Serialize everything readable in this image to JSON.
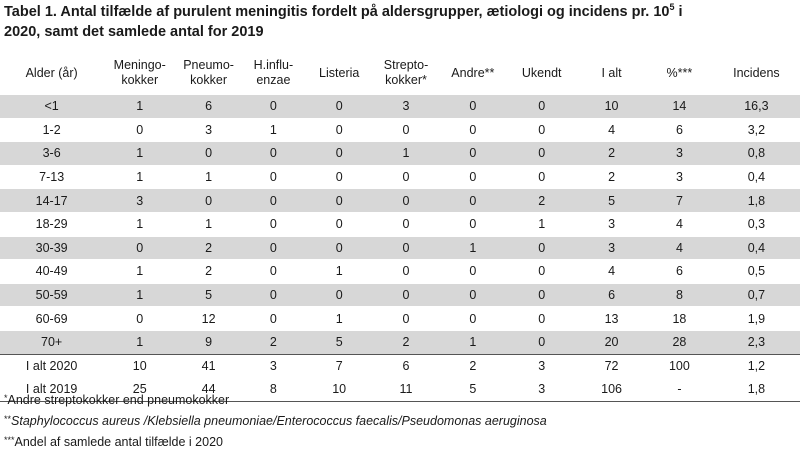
{
  "title": {
    "line1_before": "Tabel 1. Antal tilfælde af purulent meningitis fordelt på aldersgrupper, ætiologi og incidens pr. 10",
    "line1_sup": "5",
    "line1_after": " i",
    "line2": "2020, samt det samlede antal for 2019"
  },
  "columns": [
    {
      "line1": "Alder (år)",
      "line2": ""
    },
    {
      "line1": "Meningo-",
      "line2": "kokker"
    },
    {
      "line1": "Pneumo-",
      "line2": "kokker"
    },
    {
      "line1": "H.influ-",
      "line2": "enzae"
    },
    {
      "line1": "Listeria",
      "line2": ""
    },
    {
      "line1": "Strepto-",
      "line2": "kokker*"
    },
    {
      "line1": "Andre**",
      "line2": ""
    },
    {
      "line1": "Ukendt",
      "line2": ""
    },
    {
      "line1": "I alt",
      "line2": ""
    },
    {
      "line1": "%***",
      "line2": ""
    },
    {
      "line1": "Incidens",
      "line2": ""
    }
  ],
  "rows": [
    [
      "<1",
      "1",
      "6",
      "0",
      "0",
      "3",
      "0",
      "0",
      "10",
      "14",
      "16,3"
    ],
    [
      "1-2",
      "0",
      "3",
      "1",
      "0",
      "0",
      "0",
      "0",
      "4",
      "6",
      "3,2"
    ],
    [
      "3-6",
      "1",
      "0",
      "0",
      "0",
      "1",
      "0",
      "0",
      "2",
      "3",
      "0,8"
    ],
    [
      "7-13",
      "1",
      "1",
      "0",
      "0",
      "0",
      "0",
      "0",
      "2",
      "3",
      "0,4"
    ],
    [
      "14-17",
      "3",
      "0",
      "0",
      "0",
      "0",
      "0",
      "2",
      "5",
      "7",
      "1,8"
    ],
    [
      "18-29",
      "1",
      "1",
      "0",
      "0",
      "0",
      "0",
      "1",
      "3",
      "4",
      "0,3"
    ],
    [
      "30-39",
      "0",
      "2",
      "0",
      "0",
      "0",
      "1",
      "0",
      "3",
      "4",
      "0,4"
    ],
    [
      "40-49",
      "1",
      "2",
      "0",
      "1",
      "0",
      "0",
      "0",
      "4",
      "6",
      "0,5"
    ],
    [
      "50-59",
      "1",
      "5",
      "0",
      "0",
      "0",
      "0",
      "0",
      "6",
      "8",
      "0,7"
    ],
    [
      "60-69",
      "0",
      "12",
      "0",
      "1",
      "0",
      "0",
      "0",
      "13",
      "18",
      "1,9"
    ],
    [
      "70+",
      "1",
      "9",
      "2",
      "5",
      "2",
      "1",
      "0",
      "20",
      "28",
      "2,3"
    ]
  ],
  "totals": [
    [
      "I alt 2020",
      "10",
      "41",
      "3",
      "7",
      "6",
      "2",
      "3",
      "72",
      "100",
      "1,2"
    ],
    [
      "I alt 2019",
      "25",
      "44",
      "8",
      "10",
      "11",
      "5",
      "3",
      "106",
      "-",
      "1,8"
    ]
  ],
  "footnotes": {
    "fn1_mark": "*",
    "fn1_text": "Andre streptokokker end pneumokokker",
    "fn2_mark": "**",
    "fn2_text": "Staphylococcus aureus /Klebsiella pneumoniae/Enterococcus faecalis/Pseudomonas aeruginosa",
    "fn3_mark": "***",
    "fn3_text": "Andel af samlede antal tilfælde i 2020"
  },
  "colors": {
    "shade": "#d7d7d7",
    "rule": "#555555"
  }
}
